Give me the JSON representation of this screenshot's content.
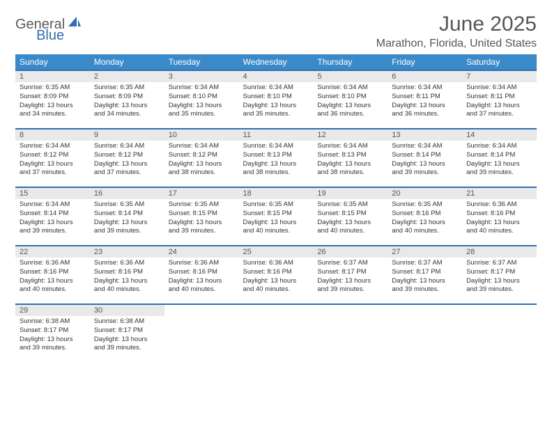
{
  "logo": {
    "word1": "General",
    "word2": "Blue"
  },
  "title": "June 2025",
  "location": "Marathon, Florida, United States",
  "colors": {
    "header_bg": "#3a8ac9",
    "border": "#2f6fb0",
    "daynum_bg": "#e9e9e9",
    "text": "#555555"
  },
  "weekdays": [
    "Sunday",
    "Monday",
    "Tuesday",
    "Wednesday",
    "Thursday",
    "Friday",
    "Saturday"
  ],
  "days": [
    {
      "n": "1",
      "sr": "6:35 AM",
      "ss": "8:09 PM",
      "dl": "13 hours and 34 minutes."
    },
    {
      "n": "2",
      "sr": "6:35 AM",
      "ss": "8:09 PM",
      "dl": "13 hours and 34 minutes."
    },
    {
      "n": "3",
      "sr": "6:34 AM",
      "ss": "8:10 PM",
      "dl": "13 hours and 35 minutes."
    },
    {
      "n": "4",
      "sr": "6:34 AM",
      "ss": "8:10 PM",
      "dl": "13 hours and 35 minutes."
    },
    {
      "n": "5",
      "sr": "6:34 AM",
      "ss": "8:10 PM",
      "dl": "13 hours and 36 minutes."
    },
    {
      "n": "6",
      "sr": "6:34 AM",
      "ss": "8:11 PM",
      "dl": "13 hours and 36 minutes."
    },
    {
      "n": "7",
      "sr": "6:34 AM",
      "ss": "8:11 PM",
      "dl": "13 hours and 37 minutes."
    },
    {
      "n": "8",
      "sr": "6:34 AM",
      "ss": "8:12 PM",
      "dl": "13 hours and 37 minutes."
    },
    {
      "n": "9",
      "sr": "6:34 AM",
      "ss": "8:12 PM",
      "dl": "13 hours and 37 minutes."
    },
    {
      "n": "10",
      "sr": "6:34 AM",
      "ss": "8:12 PM",
      "dl": "13 hours and 38 minutes."
    },
    {
      "n": "11",
      "sr": "6:34 AM",
      "ss": "8:13 PM",
      "dl": "13 hours and 38 minutes."
    },
    {
      "n": "12",
      "sr": "6:34 AM",
      "ss": "8:13 PM",
      "dl": "13 hours and 38 minutes."
    },
    {
      "n": "13",
      "sr": "6:34 AM",
      "ss": "8:14 PM",
      "dl": "13 hours and 39 minutes."
    },
    {
      "n": "14",
      "sr": "6:34 AM",
      "ss": "8:14 PM",
      "dl": "13 hours and 39 minutes."
    },
    {
      "n": "15",
      "sr": "6:34 AM",
      "ss": "8:14 PM",
      "dl": "13 hours and 39 minutes."
    },
    {
      "n": "16",
      "sr": "6:35 AM",
      "ss": "8:14 PM",
      "dl": "13 hours and 39 minutes."
    },
    {
      "n": "17",
      "sr": "6:35 AM",
      "ss": "8:15 PM",
      "dl": "13 hours and 39 minutes."
    },
    {
      "n": "18",
      "sr": "6:35 AM",
      "ss": "8:15 PM",
      "dl": "13 hours and 40 minutes."
    },
    {
      "n": "19",
      "sr": "6:35 AM",
      "ss": "8:15 PM",
      "dl": "13 hours and 40 minutes."
    },
    {
      "n": "20",
      "sr": "6:35 AM",
      "ss": "8:16 PM",
      "dl": "13 hours and 40 minutes."
    },
    {
      "n": "21",
      "sr": "6:36 AM",
      "ss": "8:16 PM",
      "dl": "13 hours and 40 minutes."
    },
    {
      "n": "22",
      "sr": "6:36 AM",
      "ss": "8:16 PM",
      "dl": "13 hours and 40 minutes."
    },
    {
      "n": "23",
      "sr": "6:36 AM",
      "ss": "8:16 PM",
      "dl": "13 hours and 40 minutes."
    },
    {
      "n": "24",
      "sr": "6:36 AM",
      "ss": "8:16 PM",
      "dl": "13 hours and 40 minutes."
    },
    {
      "n": "25",
      "sr": "6:36 AM",
      "ss": "8:16 PM",
      "dl": "13 hours and 40 minutes."
    },
    {
      "n": "26",
      "sr": "6:37 AM",
      "ss": "8:17 PM",
      "dl": "13 hours and 39 minutes."
    },
    {
      "n": "27",
      "sr": "6:37 AM",
      "ss": "8:17 PM",
      "dl": "13 hours and 39 minutes."
    },
    {
      "n": "28",
      "sr": "6:37 AM",
      "ss": "8:17 PM",
      "dl": "13 hours and 39 minutes."
    },
    {
      "n": "29",
      "sr": "6:38 AM",
      "ss": "8:17 PM",
      "dl": "13 hours and 39 minutes."
    },
    {
      "n": "30",
      "sr": "6:38 AM",
      "ss": "8:17 PM",
      "dl": "13 hours and 39 minutes."
    }
  ],
  "labels": {
    "sunrise": "Sunrise:",
    "sunset": "Sunset:",
    "daylight": "Daylight:"
  }
}
